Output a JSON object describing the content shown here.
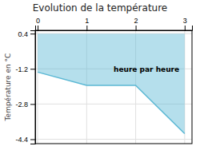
{
  "chart_data": {
    "type": "area",
    "title": "Evolution de la température",
    "y_label": "Température en °C",
    "annotations": [
      {
        "text": "heure par heure",
        "x": 1.55,
        "y": -1.05
      }
    ],
    "x": [
      0,
      1,
      2,
      3
    ],
    "values": [
      -1.35,
      -1.95,
      -1.95,
      -4.15
    ],
    "baseline": 0.4,
    "color": "#5bb8d4",
    "xlim": [
      -0.05,
      3.15
    ],
    "ylim": [
      -4.6,
      0.55
    ],
    "xticks": [
      0,
      1,
      2,
      3
    ],
    "yticks": [
      0.4,
      -1.2,
      -2.8,
      -4.4
    ],
    "grid": true
  }
}
